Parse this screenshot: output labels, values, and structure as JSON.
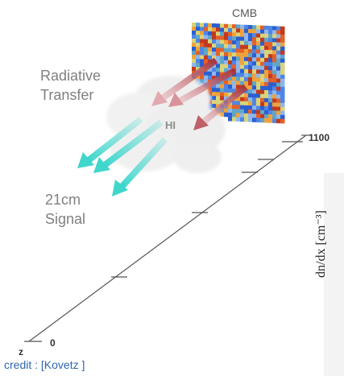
{
  "cmb": {
    "label": "CMB"
  },
  "radiative_transfer": {
    "line1": "Radiative",
    "line2": "Transfer"
  },
  "cloud": {
    "label": "HI"
  },
  "signal": {
    "line1": "21cm",
    "line2": "Signal"
  },
  "axis": {
    "top_tick": "1100",
    "bottom_tick": "0",
    "variable": "z"
  },
  "side_plot": {
    "ylabel": "dn/dx [cm⁻³]"
  },
  "credit": "credit : [Kovetz ]",
  "colors": {
    "incoming_arrow": "#a8323c",
    "outgoing_arrow": "#3fd6cc",
    "cloud": "#eeeeee",
    "axis": "#555555",
    "credit": "#2f66ad"
  }
}
